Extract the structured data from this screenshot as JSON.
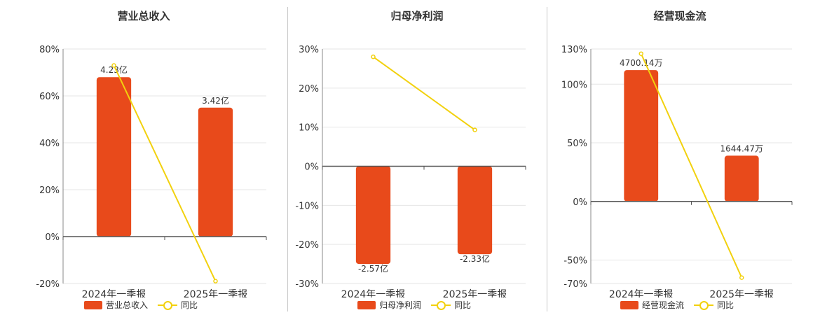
{
  "chart_data": [
    {
      "type": "bar+line",
      "title": "营业总收入",
      "categories": [
        "2024年一季报",
        "2025年一季报"
      ],
      "series": [
        {
          "name": "营业总收入",
          "type": "bar",
          "values": [
            68,
            55
          ],
          "labels": [
            "4.23亿",
            "3.42亿"
          ]
        },
        {
          "name": "同比",
          "type": "line",
          "values": [
            73,
            -19
          ]
        }
      ],
      "yticks": [
        80,
        60,
        40,
        20,
        0,
        -20
      ],
      "ytick_labels": [
        "80%",
        "60%",
        "40%",
        "20%",
        "0%",
        "-20%"
      ],
      "ylim": [
        -20,
        80
      ],
      "grid": true,
      "legend": "bottom",
      "colors": {
        "bar": "#e84a1b",
        "line": "#f2d10e"
      }
    },
    {
      "type": "bar+line",
      "title": "归母净利润",
      "categories": [
        "2024年一季报",
        "2025年一季报"
      ],
      "series": [
        {
          "name": "归母净利润",
          "type": "bar",
          "values": [
            -25,
            -22.5
          ],
          "labels": [
            "-2.57亿",
            "-2.33亿"
          ]
        },
        {
          "name": "同比",
          "type": "line",
          "values": [
            28,
            9.3
          ]
        }
      ],
      "yticks": [
        30,
        20,
        10,
        0,
        -10,
        -20,
        -30
      ],
      "ytick_labels": [
        "30%",
        "20%",
        "10%",
        "0%",
        "-10%",
        "-20%",
        "-30%"
      ],
      "ylim": [
        -30,
        30
      ],
      "grid": true,
      "legend": "bottom",
      "colors": {
        "bar": "#e84a1b",
        "line": "#f2d10e"
      }
    },
    {
      "type": "bar+line",
      "title": "经营现金流",
      "categories": [
        "2024年一季报",
        "2025年一季报"
      ],
      "series": [
        {
          "name": "经营现金流",
          "type": "bar",
          "values": [
            112,
            39
          ],
          "labels": [
            "4700.14万",
            "1644.47万"
          ]
        },
        {
          "name": "同比",
          "type": "line",
          "values": [
            126,
            -65
          ]
        }
      ],
      "yticks": [
        130,
        100,
        50,
        0,
        -50,
        -70
      ],
      "ytick_labels": [
        "130%",
        "100%",
        "50%",
        "0%",
        "-50%",
        "-70%"
      ],
      "ylim": [
        -70,
        130
      ],
      "grid": true,
      "legend": "bottom",
      "colors": {
        "bar": "#e84a1b",
        "line": "#f2d10e"
      }
    }
  ]
}
